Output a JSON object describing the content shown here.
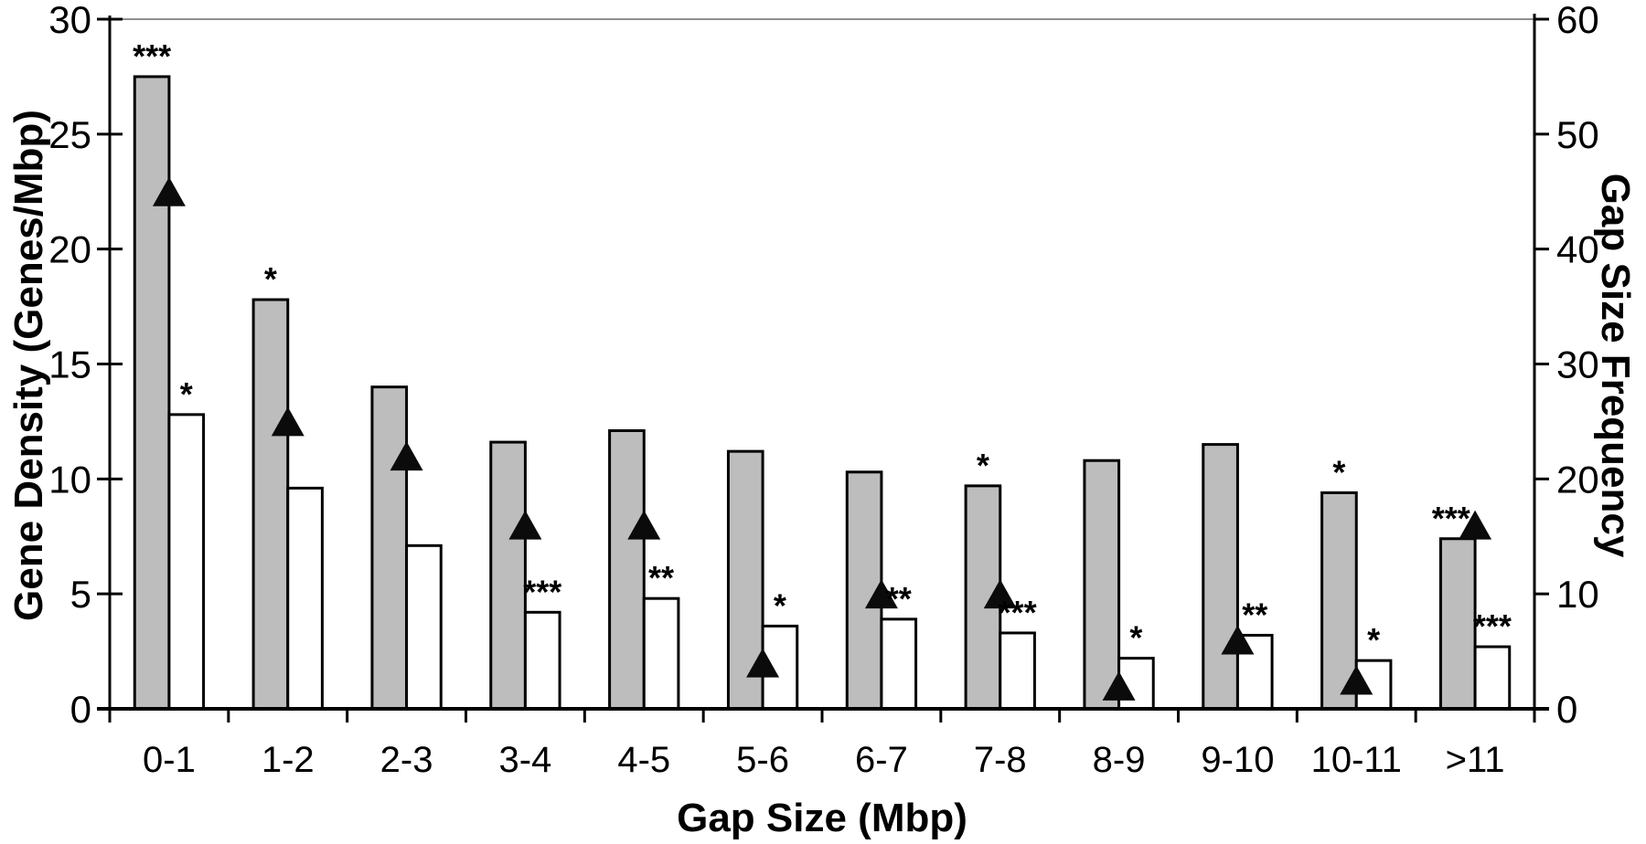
{
  "chart_data": {
    "type": "bar",
    "title": "",
    "x_label": "Gap Size (Mbp)",
    "categories": [
      "0-1",
      "1-2",
      "2-3",
      "3-4",
      "4-5",
      "5-6",
      "6-7",
      "7-8",
      "8-9",
      "9-10",
      "10-11",
      ">11"
    ],
    "series": [
      {
        "name": "gene-density-shaded-bars",
        "axis": "left",
        "color": "#bdbdbd",
        "values": [
          27.5,
          17.8,
          14.0,
          11.6,
          12.1,
          11.2,
          10.3,
          9.7,
          10.8,
          11.5,
          9.4,
          7.4
        ],
        "significance": [
          "***",
          "*",
          "",
          "",
          "",
          "",
          "",
          "*",
          "",
          "",
          "*",
          "***"
        ]
      },
      {
        "name": "gene-density-white-bars",
        "axis": "left",
        "color": "#ffffff",
        "values": [
          12.8,
          9.6,
          7.1,
          4.2,
          4.8,
          3.6,
          3.9,
          3.3,
          2.2,
          3.2,
          2.1,
          2.7
        ],
        "significance": [
          "*",
          "",
          "",
          "***",
          "**",
          "*",
          "**",
          "***",
          "*",
          "**",
          "*",
          "***"
        ]
      },
      {
        "name": "gap-size-frequency-triangles",
        "axis": "right",
        "marker": "black-triangle",
        "color": "#0b0b0b",
        "values": [
          45,
          25,
          22,
          16,
          16,
          4,
          10,
          10,
          2,
          6,
          2.5,
          16
        ]
      }
    ],
    "left_axis": {
      "label": "Gene Density (Genes/Mbp)",
      "range": [
        0,
        30
      ],
      "ticks": [
        "0",
        "5",
        "10",
        "15",
        "20",
        "25",
        "30"
      ]
    },
    "right_axis": {
      "label": "Gap Size Frequency",
      "range": [
        0,
        60
      ],
      "ticks": [
        "0",
        "10",
        "20",
        "30",
        "40",
        "50",
        "60"
      ]
    },
    "grid": false,
    "legend": "none"
  }
}
